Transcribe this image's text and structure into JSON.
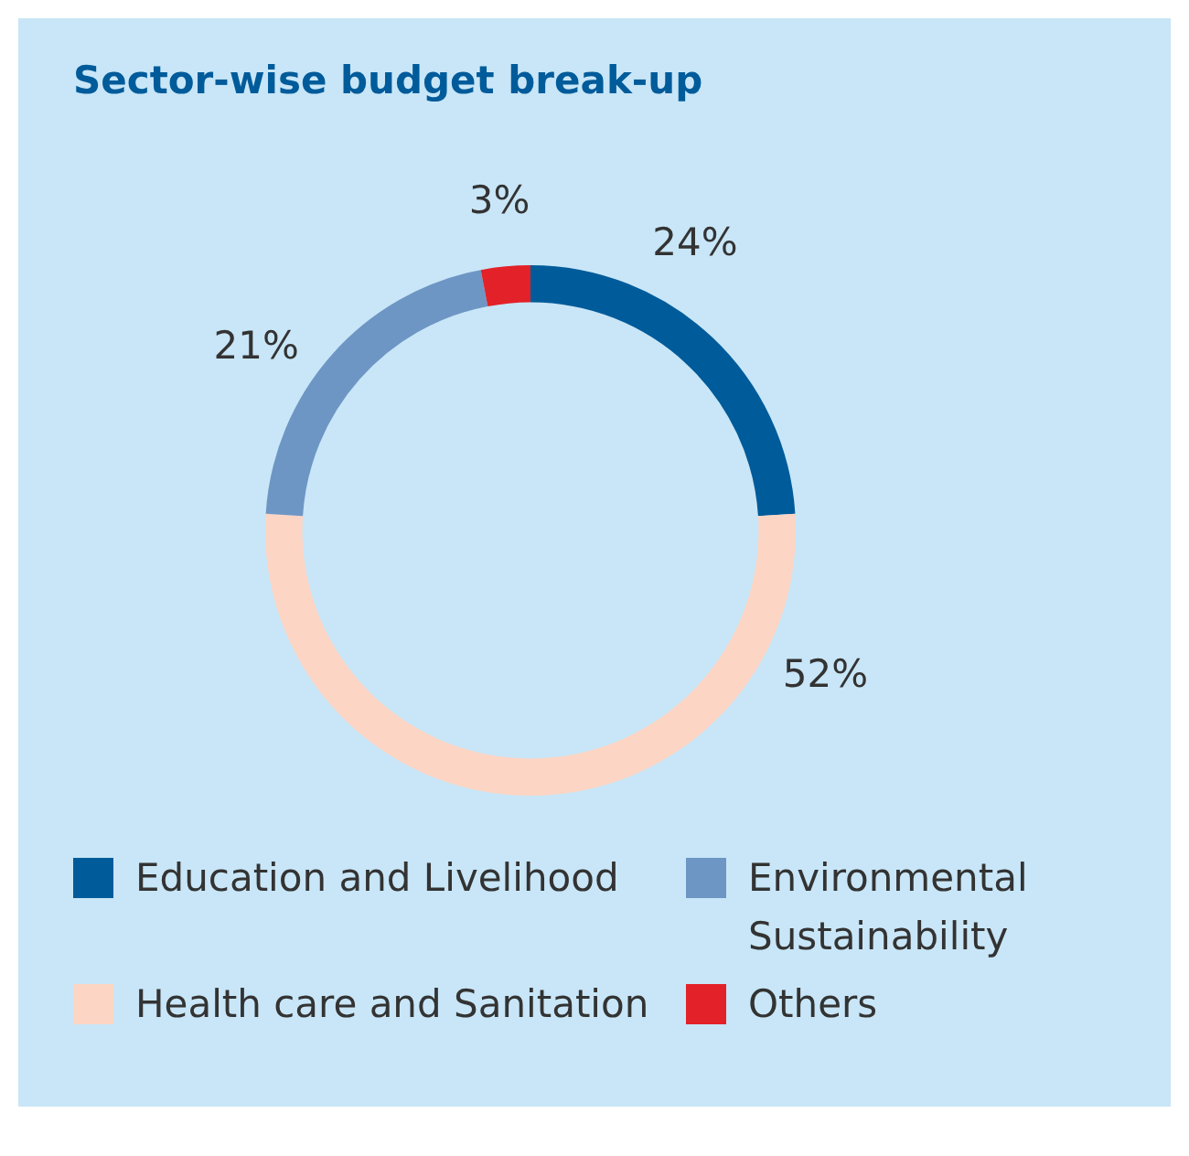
{
  "chart_data": {
    "type": "donut",
    "title": "Sector-wise budget break-up",
    "categories": [
      "Education and Livelihood",
      "Health care and Sanitation",
      "Environmental Sustainability",
      "Others"
    ],
    "values": [
      24,
      52,
      21,
      3
    ],
    "colors": [
      "#005b9a",
      "#fdd5c4",
      "#6e96c4",
      "#e32128"
    ],
    "value_labels": [
      "24%",
      "52%",
      "21%",
      "3%"
    ],
    "legend": "bottom"
  }
}
